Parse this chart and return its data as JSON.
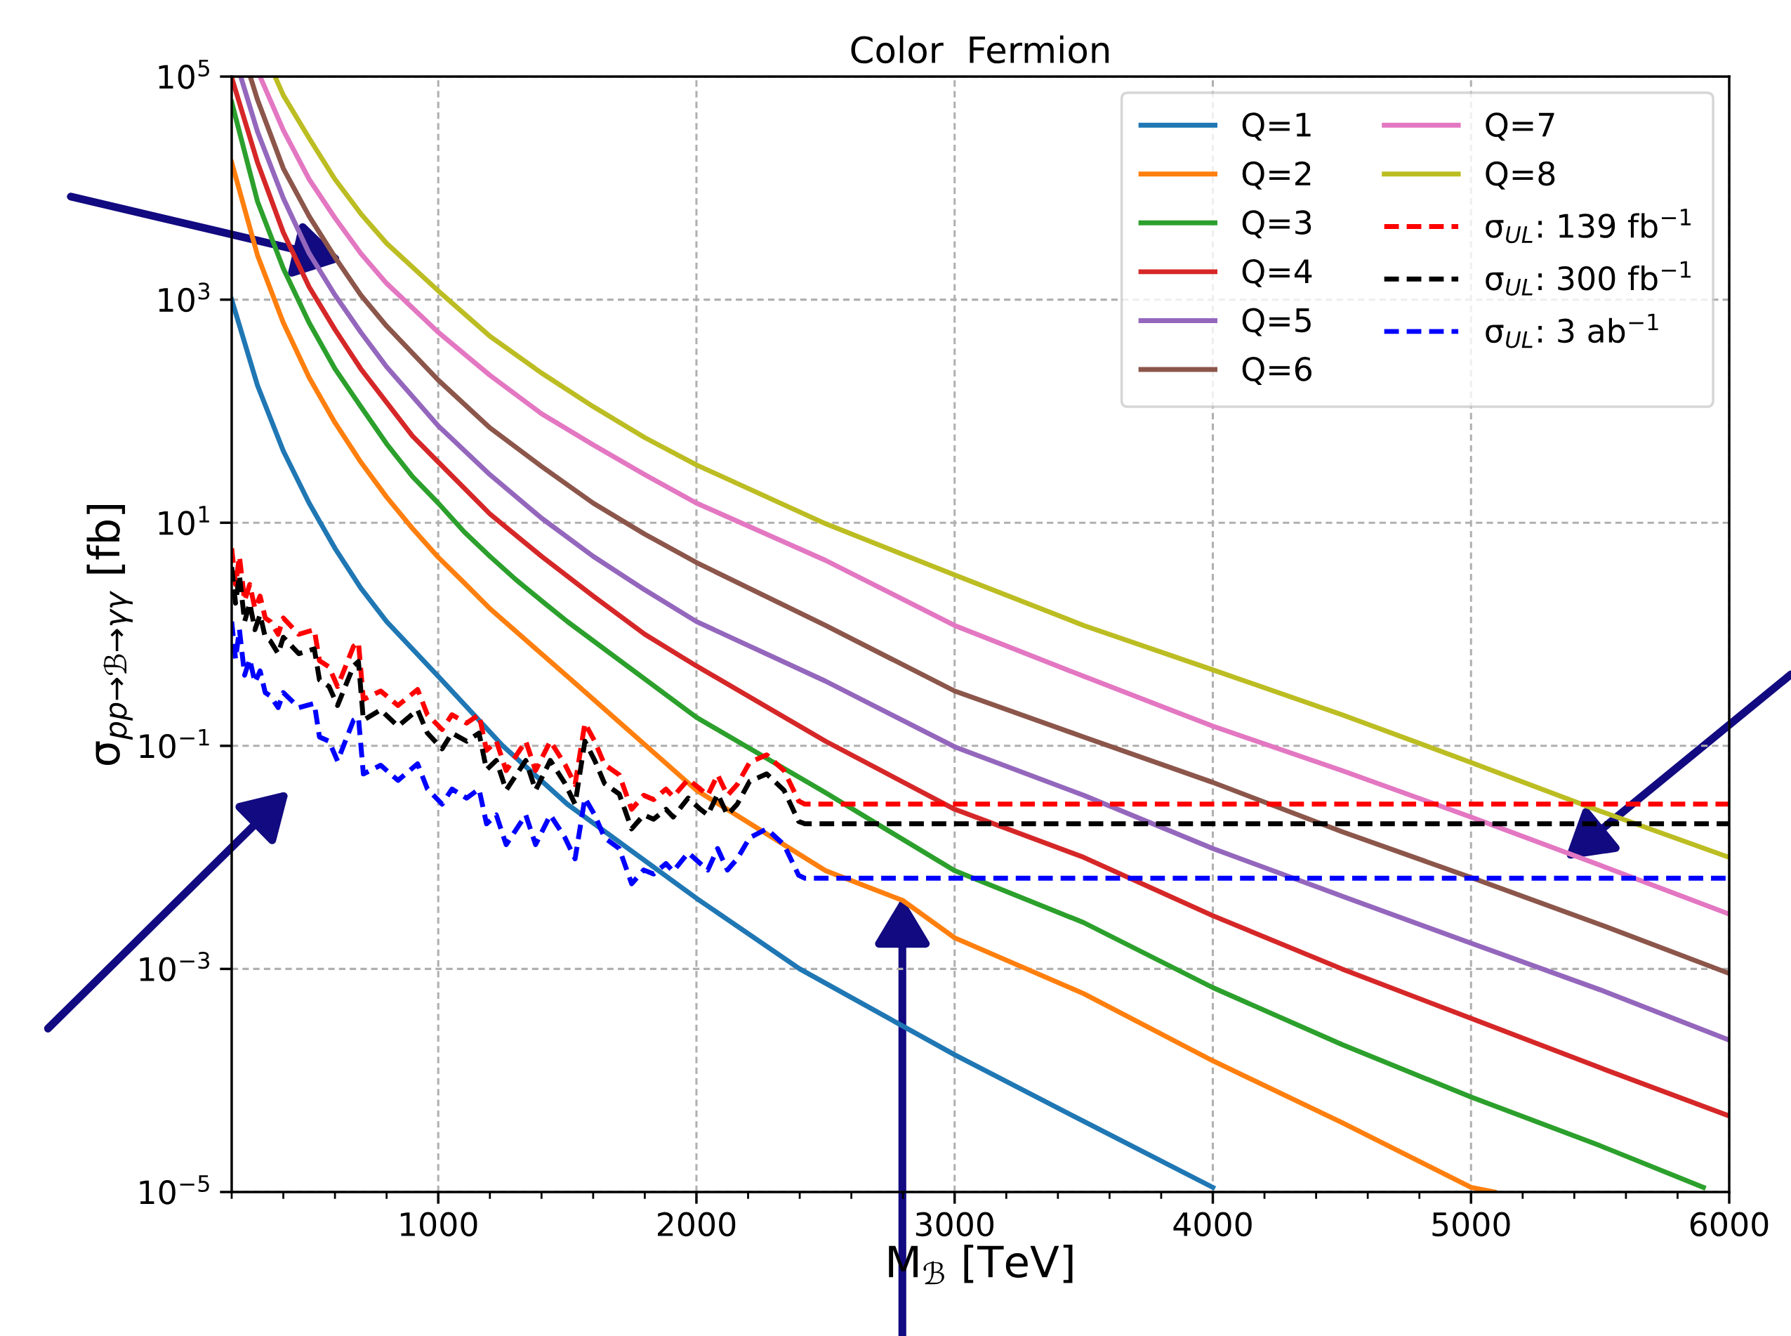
{
  "chart_data": {
    "type": "line",
    "title": "Color  Fermion",
    "xlabel": "M$_{ℬ}$ [TeV]",
    "ylabel": "σ$_{pp→ℬ→γγ}$ [fb]",
    "log": "y",
    "grid": true,
    "legend": "top right",
    "marker": "none",
    "xlim": [
      200,
      6000
    ],
    "xticks": [
      1000,
      2000,
      3000,
      4000,
      5000,
      6000
    ],
    "ylim": [
      1e-05,
      100000
    ],
    "yticks": [
      {
        "value": 1e-05,
        "label": "10$^{−5}$"
      },
      {
        "value": 0.001,
        "label": "10$^{−3}$"
      },
      {
        "value": 0.1,
        "label": "10$^{−1}$"
      },
      {
        "value": 10,
        "label": "10$^{1}$"
      },
      {
        "value": 1000,
        "label": "10$^{3}$"
      },
      {
        "value": 100000,
        "label": "10$^{5}$"
      }
    ],
    "series": [
      {
        "name": "Q=1",
        "color": "#1f77b4",
        "line_style": "solid",
        "x": [
          200,
          300,
          400,
          500,
          600,
          700,
          800,
          1000,
          1250,
          1500,
          2000,
          2400,
          3000,
          3500,
          4000
        ],
        "values": [
          1000,
          170,
          44,
          15,
          5.9,
          2.6,
          1.3,
          0.42,
          0.1,
          0.03,
          0.0043,
          0.001,
          0.00017,
          4.3e-05,
          1.1e-05
        ]
      },
      {
        "name": "Q=2",
        "color": "#ff7f0e",
        "line_style": "solid",
        "x": [
          200,
          300,
          400,
          500,
          600,
          700,
          800,
          900,
          1000,
          1100,
          1200,
          1500,
          2000,
          2500,
          2800,
          3000,
          3500,
          4000,
          4500,
          5000,
          5090
        ],
        "values": [
          17000,
          2500,
          620,
          200,
          79,
          35,
          17,
          8.9,
          4.9,
          2.9,
          1.7,
          0.42,
          0.04,
          0.0076,
          0.0041,
          0.0019,
          0.0006,
          0.00015,
          4.2e-05,
          1.1e-05,
          1e-05
        ]
      },
      {
        "name": "Q=3",
        "color": "#2ca02c",
        "line_style": "solid",
        "x": [
          200,
          300,
          400,
          500,
          600,
          700,
          800,
          900,
          1000,
          1100,
          1200,
          1300,
          1400,
          1500,
          2000,
          2500,
          3000,
          3500,
          4000,
          4500,
          5000,
          5500,
          5900
        ],
        "values": [
          59000,
          7600,
          1900,
          620,
          240,
          110,
          51,
          26,
          15,
          8.3,
          5.0,
          3.1,
          2.0,
          1.3,
          0.18,
          0.038,
          0.0076,
          0.0026,
          0.00068,
          0.00021,
          7.1e-05,
          2.6e-05,
          1.1e-05
        ]
      },
      {
        "name": "Q=4",
        "color": "#d62728",
        "line_style": "solid",
        "x": [
          200,
          300,
          400,
          500,
          600,
          700,
          800,
          900,
          1000,
          1200,
          1400,
          1600,
          1800,
          2000,
          2500,
          3000,
          3500,
          4000,
          4500,
          5000,
          5500,
          6000
        ],
        "values": [
          98000,
          17000,
          4000,
          1300,
          540,
          240,
          120,
          60,
          35,
          12,
          5.0,
          2.2,
          1.0,
          0.52,
          0.11,
          0.027,
          0.01,
          0.003,
          0.001,
          0.00036,
          0.00013,
          4.8e-05
        ]
      },
      {
        "name": "Q=5",
        "color": "#9467bd",
        "line_style": "solid",
        "x": [
          235,
          300,
          400,
          500,
          600,
          700,
          800,
          1000,
          1200,
          1400,
          1600,
          1800,
          2000,
          2500,
          3000,
          3500,
          4000,
          4500,
          5000,
          5500,
          6000
        ],
        "values": [
          100000,
          32000,
          8100,
          2600,
          1100,
          510,
          250,
          74,
          27,
          11,
          5.0,
          2.5,
          1.3,
          0.38,
          0.098,
          0.036,
          0.012,
          0.0045,
          0.0017,
          0.00065,
          0.00023
        ]
      },
      {
        "name": "Q=6",
        "color": "#8c564b",
        "line_style": "solid",
        "x": [
          272,
          300,
          400,
          500,
          600,
          700,
          800,
          1000,
          1200,
          1400,
          1600,
          1800,
          2000,
          2500,
          3000,
          3500,
          4000,
          4500,
          5000,
          5500,
          6000
        ],
        "values": [
          100000,
          62000,
          15000,
          5600,
          2400,
          1100,
          580,
          190,
          71,
          32,
          15,
          7.9,
          4.4,
          1.2,
          0.31,
          0.12,
          0.047,
          0.017,
          0.0066,
          0.0025,
          0.00091
        ]
      },
      {
        "name": "Q=7",
        "color": "#e377c2",
        "line_style": "solid",
        "x": [
          310,
          400,
          500,
          600,
          700,
          800,
          1000,
          1200,
          1400,
          1600,
          1800,
          2000,
          2500,
          3000,
          3500,
          4000,
          4500,
          5000,
          5500,
          6000
        ],
        "values": [
          100000,
          33000,
          12000,
          5400,
          2600,
          1400,
          510,
          210,
          95,
          50,
          27,
          15,
          4.6,
          1.2,
          0.42,
          0.15,
          0.06,
          0.023,
          0.0085,
          0.0031
        ]
      },
      {
        "name": "Q=8",
        "color": "#bcbd22",
        "line_style": "solid",
        "x": [
          368,
          400,
          500,
          600,
          700,
          800,
          1000,
          1200,
          1400,
          1600,
          1800,
          2000,
          2500,
          3000,
          3500,
          4000,
          4500,
          5000,
          5500,
          6000
        ],
        "values": [
          100000,
          68000,
          28000,
          12000,
          5900,
          3200,
          1200,
          470,
          220,
          110,
          58,
          33,
          9.8,
          3.4,
          1.2,
          0.48,
          0.19,
          0.071,
          0.026,
          0.01
        ]
      },
      {
        "name": "σ$_{UL}$: 139 fb$^{−1}$",
        "color": "#ff0000",
        "line_style": "dashed",
        "x": [
          200,
          215,
          230,
          250,
          270,
          290,
          310,
          330,
          350,
          380,
          400,
          460,
          520,
          540,
          577,
          610,
          672,
          691,
          710,
          777,
          844,
          920,
          958,
          1015,
          1053,
          1110,
          1158,
          1187,
          1225,
          1263,
          1339,
          1377,
          1434,
          1491,
          1530,
          1568,
          1606,
          1644,
          1701,
          1749,
          1796,
          1834,
          1882,
          1910,
          1968,
          2015,
          2044,
          2082,
          2120,
          2158,
          2206,
          2272,
          2339,
          2396,
          2420,
          6000
        ],
        "values": [
          5.9,
          2.8,
          5.0,
          2.0,
          2.8,
          1.7,
          2.2,
          1.4,
          1.3,
          1.0,
          1.4,
          1.0,
          1.1,
          0.58,
          0.51,
          0.34,
          0.78,
          0.85,
          0.26,
          0.31,
          0.23,
          0.32,
          0.19,
          0.14,
          0.19,
          0.16,
          0.19,
          0.091,
          0.11,
          0.06,
          0.11,
          0.06,
          0.11,
          0.068,
          0.045,
          0.16,
          0.11,
          0.068,
          0.055,
          0.027,
          0.036,
          0.033,
          0.041,
          0.035,
          0.05,
          0.041,
          0.036,
          0.055,
          0.036,
          0.045,
          0.071,
          0.083,
          0.06,
          0.032,
          0.03,
          0.03
        ]
      },
      {
        "name": "σ$_{UL}$: 300 fb$^{−1}$",
        "color": "#000000",
        "line_style": "dashed",
        "x": [
          200,
          215,
          230,
          250,
          270,
          290,
          310,
          330,
          350,
          380,
          400,
          460,
          520,
          540,
          577,
          610,
          672,
          691,
          710,
          777,
          844,
          920,
          958,
          1015,
          1053,
          1110,
          1158,
          1187,
          1225,
          1263,
          1339,
          1377,
          1434,
          1491,
          1530,
          1568,
          1606,
          1644,
          1701,
          1749,
          1796,
          1834,
          1882,
          1910,
          1968,
          2015,
          2044,
          2082,
          2120,
          2158,
          2206,
          2272,
          2339,
          2396,
          2420,
          6000
        ],
        "values": [
          4.0,
          1.9,
          3.4,
          1.3,
          1.9,
          1.1,
          1.5,
          0.94,
          0.87,
          0.67,
          0.94,
          0.67,
          0.74,
          0.39,
          0.34,
          0.23,
          0.52,
          0.57,
          0.17,
          0.21,
          0.15,
          0.21,
          0.13,
          0.094,
          0.13,
          0.11,
          0.13,
          0.061,
          0.074,
          0.04,
          0.074,
          0.04,
          0.074,
          0.046,
          0.03,
          0.11,
          0.074,
          0.046,
          0.037,
          0.018,
          0.024,
          0.022,
          0.027,
          0.023,
          0.034,
          0.027,
          0.024,
          0.037,
          0.024,
          0.03,
          0.048,
          0.056,
          0.04,
          0.021,
          0.02,
          0.02
        ]
      },
      {
        "name": "σ$_{UL}$: 3 ab$^{−1}$",
        "color": "#0000ff",
        "line_style": "dashed",
        "x": [
          200,
          215,
          230,
          250,
          270,
          290,
          310,
          330,
          350,
          380,
          400,
          460,
          520,
          540,
          577,
          610,
          672,
          691,
          710,
          777,
          844,
          920,
          958,
          1015,
          1053,
          1110,
          1158,
          1187,
          1225,
          1263,
          1339,
          1377,
          1434,
          1491,
          1530,
          1568,
          1606,
          1644,
          1701,
          1749,
          1796,
          1834,
          1882,
          1910,
          1968,
          2015,
          2044,
          2082,
          2120,
          2158,
          2206,
          2272,
          2339,
          2396,
          2420,
          6000
        ],
        "values": [
          1.3,
          0.6,
          1.1,
          0.43,
          0.6,
          0.37,
          0.47,
          0.3,
          0.28,
          0.22,
          0.3,
          0.22,
          0.24,
          0.12,
          0.11,
          0.073,
          0.17,
          0.18,
          0.056,
          0.067,
          0.049,
          0.069,
          0.041,
          0.03,
          0.041,
          0.034,
          0.041,
          0.02,
          0.024,
          0.013,
          0.024,
          0.013,
          0.024,
          0.015,
          0.0097,
          0.034,
          0.024,
          0.015,
          0.012,
          0.0058,
          0.0077,
          0.0071,
          0.0088,
          0.0075,
          0.011,
          0.0088,
          0.0077,
          0.012,
          0.0077,
          0.0097,
          0.015,
          0.018,
          0.013,
          0.0069,
          0.0065,
          0.0065
        ]
      }
    ]
  }
}
